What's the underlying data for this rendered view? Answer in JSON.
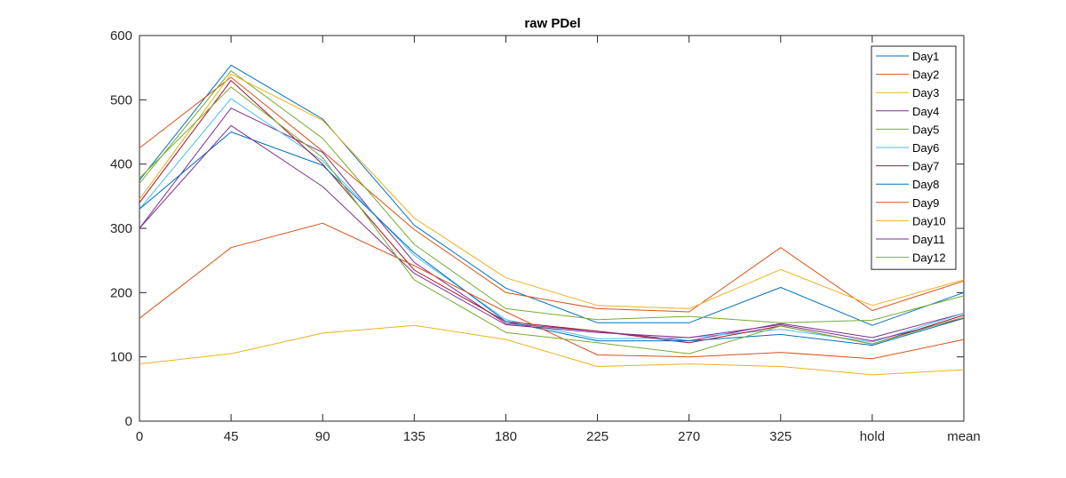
{
  "chart_data": {
    "type": "line",
    "title": "raw PDel",
    "xlabel": "",
    "ylabel": "",
    "categories": [
      "0",
      "45",
      "90",
      "135",
      "180",
      "225",
      "270",
      "325",
      "hold",
      "mean"
    ],
    "ylim": [
      0,
      600
    ],
    "yticks": [
      0,
      100,
      200,
      300,
      400,
      500,
      600
    ],
    "grid": false,
    "legend_position": "top-right",
    "series": [
      {
        "name": "Day1",
        "color": "#0072bd",
        "values": [
          375,
          554,
          470,
          305,
          207,
          153,
          153,
          208,
          149,
          200
        ]
      },
      {
        "name": "Day2",
        "color": "#d95319",
        "values": [
          425,
          535,
          420,
          298,
          200,
          175,
          170,
          270,
          172,
          218
        ]
      },
      {
        "name": "Day3",
        "color": "#edb120",
        "values": [
          89,
          105,
          137,
          149,
          127,
          85,
          89,
          85,
          72,
          80
        ]
      },
      {
        "name": "Day4",
        "color": "#7e2f8e",
        "values": [
          300,
          487,
          418,
          247,
          152,
          140,
          125,
          152,
          130,
          168
        ]
      },
      {
        "name": "Day5",
        "color": "#77ac30",
        "values": [
          370,
          545,
          440,
          275,
          175,
          158,
          163,
          153,
          157,
          195
        ]
      },
      {
        "name": "Day6",
        "color": "#4dbeee",
        "values": [
          330,
          502,
          405,
          258,
          158,
          128,
          130,
          143,
          123,
          168
        ]
      },
      {
        "name": "Day7",
        "color": "#a2142f",
        "values": [
          340,
          530,
          400,
          235,
          155,
          140,
          122,
          148,
          120,
          165
        ]
      },
      {
        "name": "Day8",
        "color": "#0072bd",
        "values": [
          330,
          450,
          398,
          262,
          155,
          125,
          125,
          135,
          118,
          160
        ]
      },
      {
        "name": "Day9",
        "color": "#d95319",
        "values": [
          160,
          270,
          308,
          242,
          170,
          103,
          100,
          107,
          97,
          127
        ]
      },
      {
        "name": "Day10",
        "color": "#edb120",
        "values": [
          345,
          540,
          468,
          316,
          223,
          180,
          175,
          236,
          180,
          220
        ]
      },
      {
        "name": "Day11",
        "color": "#7e2f8e",
        "values": [
          300,
          460,
          365,
          230,
          150,
          138,
          130,
          150,
          125,
          160
        ]
      },
      {
        "name": "Day12",
        "color": "#77ac30",
        "values": [
          378,
          520,
          410,
          220,
          138,
          122,
          105,
          148,
          120,
          162
        ]
      }
    ]
  }
}
